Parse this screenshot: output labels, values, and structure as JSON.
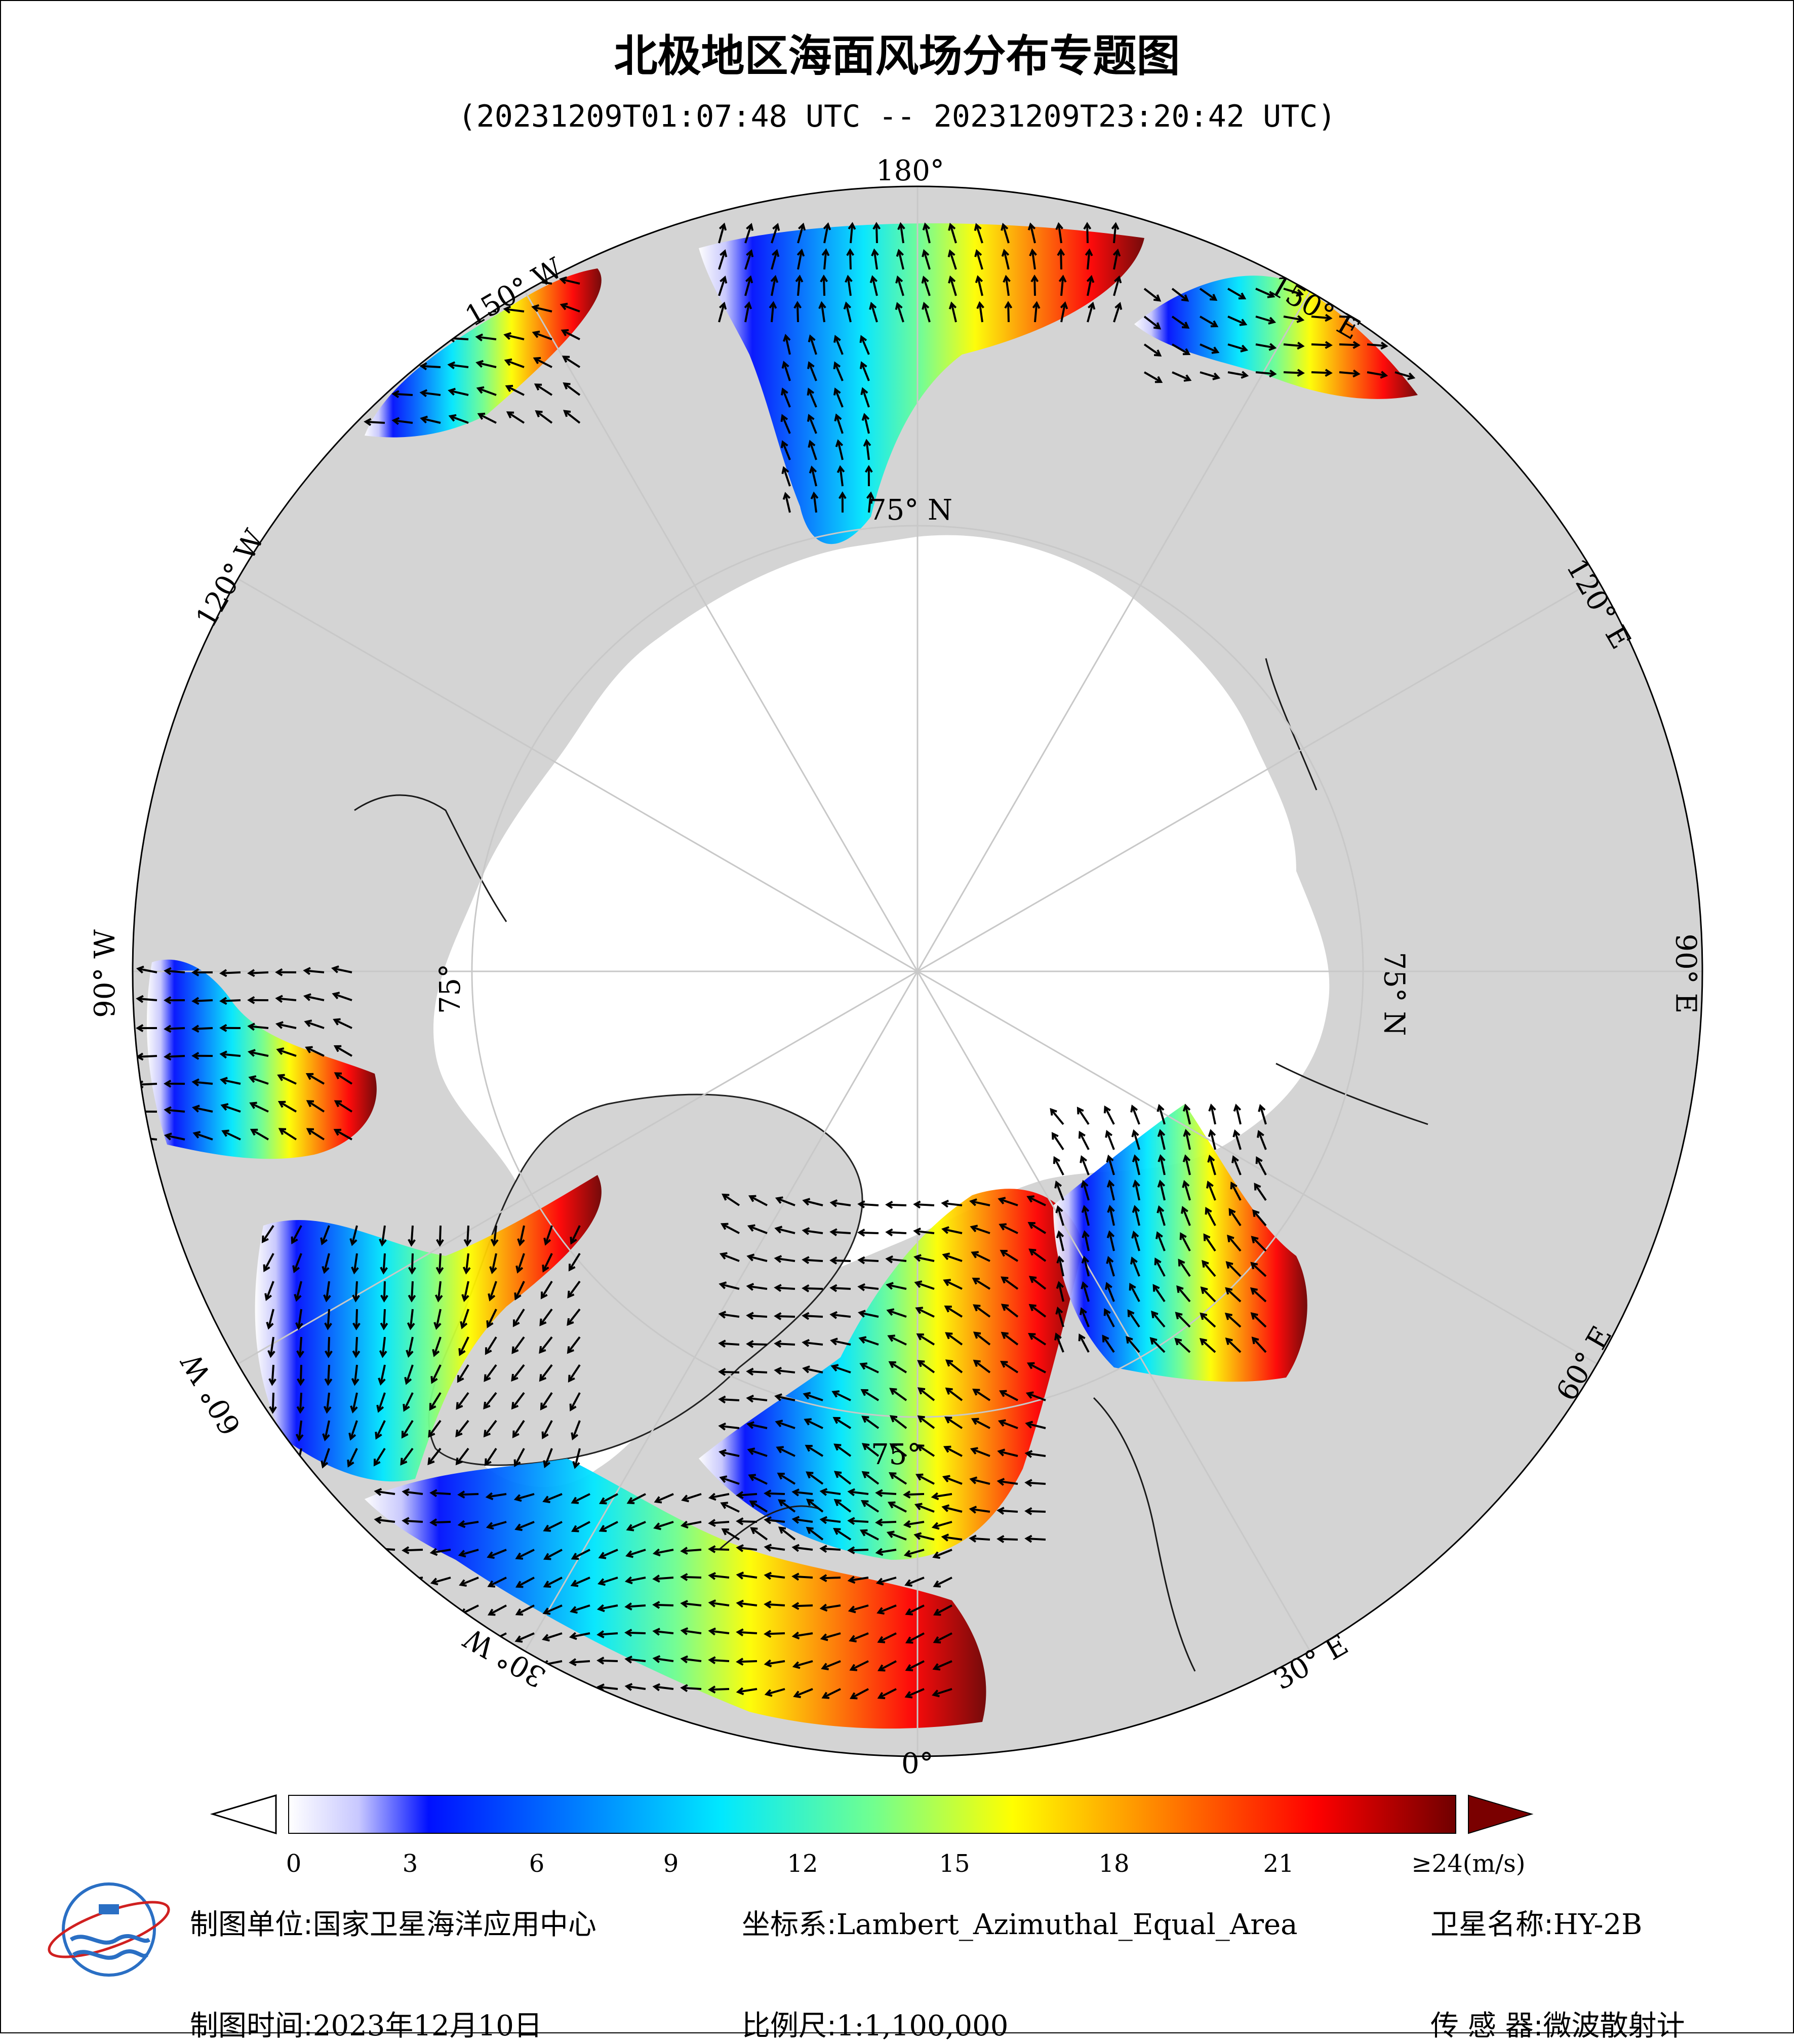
{
  "title": "北极地区海面风场分布专题图",
  "subtitle": "(20231209T01:07:48 UTC -- 20231209T23:20:42 UTC)",
  "lon_labels": {
    "l180": "180°",
    "l150e": "150° E",
    "l120e": "120° E",
    "l90e": "90° E",
    "l60e": "60° E",
    "l30e": "30° E",
    "l0": "0°",
    "l30w": "30° W",
    "l60w": "60° W",
    "l90w": "90° W",
    "l120w": "120° W",
    "l150w": "150° W"
  },
  "lat_labels": {
    "top": "75° N",
    "right": "75° N",
    "left": "75°",
    "bottom": "75°"
  },
  "colorbar": {
    "ticks": [
      "0",
      "3",
      "6",
      "9",
      "12",
      "15",
      "18",
      "21"
    ],
    "max_label": "≥24(m/s)",
    "range": [
      0,
      24
    ],
    "colors": [
      "#ffffff",
      "#0000ff",
      "#00e5ff",
      "#ffff00",
      "#ff0000",
      "#7a0000"
    ]
  },
  "footer": {
    "unit_label": "制图单位:",
    "unit_value": "国家卫星海洋应用中心",
    "time_label": "制图时间:",
    "time_value": "2023年12月10日",
    "crs_label": "坐标系:",
    "crs_value": "Lambert_Azimuthal_Equal_Area",
    "scale_label": "比例尺:",
    "scale_value": "1:1,100,000",
    "sat_label": "卫星名称:",
    "sat_value": "HY-2B",
    "sensor_label": "传 感 器:",
    "sensor_value": "微波散射计"
  },
  "colors": {
    "land": "#d4d4d4",
    "ice": "#ffffff",
    "graticule": "#c8c8c8"
  }
}
